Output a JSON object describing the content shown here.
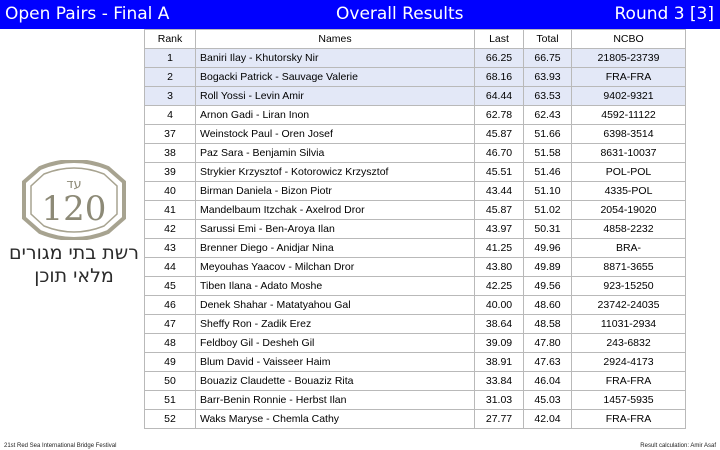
{
  "header": {
    "left_title": "Open Pairs - Final A",
    "center_title": "Overall Results",
    "right_title": "Round 3 [3]",
    "bg_color": "#0000ff"
  },
  "table": {
    "columns": [
      "Rank",
      "Names",
      "Last",
      "Total",
      "NCBO"
    ],
    "highlight_color": "#e3e8f7",
    "rows": [
      {
        "rank": "1",
        "names": "Baniri Ilay - Khutorsky Nir",
        "last": "66.25",
        "total": "66.75",
        "ncbo": "21805-23739"
      },
      {
        "rank": "2",
        "names": "Bogacki Patrick - Sauvage Valerie",
        "last": "68.16",
        "total": "63.93",
        "ncbo": "FRA-FRA"
      },
      {
        "rank": "3",
        "names": "Roll Yossi - Levin Amir",
        "last": "64.44",
        "total": "63.53",
        "ncbo": "9402-9321"
      },
      {
        "rank": "4",
        "names": "Arnon Gadi - Liran Inon",
        "last": "62.78",
        "total": "62.43",
        "ncbo": "4592-11122"
      },
      {
        "rank": "37",
        "names": "Weinstock Paul - Oren Josef",
        "last": "45.87",
        "total": "51.66",
        "ncbo": "6398-3514"
      },
      {
        "rank": "38",
        "names": "Paz Sara - Benjamin Silvia",
        "last": "46.70",
        "total": "51.58",
        "ncbo": "8631-10037"
      },
      {
        "rank": "39",
        "names": "Strykier Krzysztof - Kotorowicz Krzysztof",
        "last": "45.51",
        "total": "51.46",
        "ncbo": "POL-POL"
      },
      {
        "rank": "40",
        "names": "Birman Daniela - Bizon Piotr",
        "last": "43.44",
        "total": "51.10",
        "ncbo": "4335-POL"
      },
      {
        "rank": "41",
        "names": "Mandelbaum Itzchak - Axelrod Dror",
        "last": "45.87",
        "total": "51.02",
        "ncbo": "2054-19020"
      },
      {
        "rank": "42",
        "names": "Sarussi Emi - Ben-Aroya Ilan",
        "last": "43.97",
        "total": "50.31",
        "ncbo": "4858-2232"
      },
      {
        "rank": "43",
        "names": "Brenner Diego - Anidjar Nina",
        "last": "41.25",
        "total": "49.96",
        "ncbo": "BRA-"
      },
      {
        "rank": "44",
        "names": "Meyouhas Yaacov - Milchan Dror",
        "last": "43.80",
        "total": "49.89",
        "ncbo": "8871-3655"
      },
      {
        "rank": "45",
        "names": "Tiben Ilana - Adato Moshe",
        "last": "42.25",
        "total": "49.56",
        "ncbo": "923-15250"
      },
      {
        "rank": "46",
        "names": "Denek Shahar - Matatyahou Gal",
        "last": "40.00",
        "total": "48.60",
        "ncbo": "23742-24035"
      },
      {
        "rank": "47",
        "names": "Sheffy Ron - Zadik Erez",
        "last": "38.64",
        "total": "48.58",
        "ncbo": "11031-2934"
      },
      {
        "rank": "48",
        "names": "Feldboy Gil - Desheh Gil",
        "last": "39.09",
        "total": "47.80",
        "ncbo": "243-6832"
      },
      {
        "rank": "49",
        "names": "Blum David - Vaisseer Haim",
        "last": "38.91",
        "total": "47.63",
        "ncbo": "2924-4173"
      },
      {
        "rank": "50",
        "names": "Bouaziz Claudette - Bouaziz Rita",
        "last": "33.84",
        "total": "46.04",
        "ncbo": "FRA-FRA"
      },
      {
        "rank": "51",
        "names": "Barr-Benin Ronnie - Herbst Ilan",
        "last": "31.03",
        "total": "45.03",
        "ncbo": "1457-5935"
      },
      {
        "rank": "52",
        "names": "Waks Maryse - Chemla Cathy",
        "last": "27.77",
        "total": "42.04",
        "ncbo": "FRA-FRA"
      }
    ]
  },
  "logo": {
    "badge_top": "עד",
    "badge_number": "120",
    "line1": "רשת בתי מגורים",
    "line2": "מלאי תוכן",
    "badge_color": "#a7a390"
  },
  "footer": {
    "left": "21st Red Sea International Bridge Festival",
    "right": "Result calculation: Amir Asaf"
  }
}
